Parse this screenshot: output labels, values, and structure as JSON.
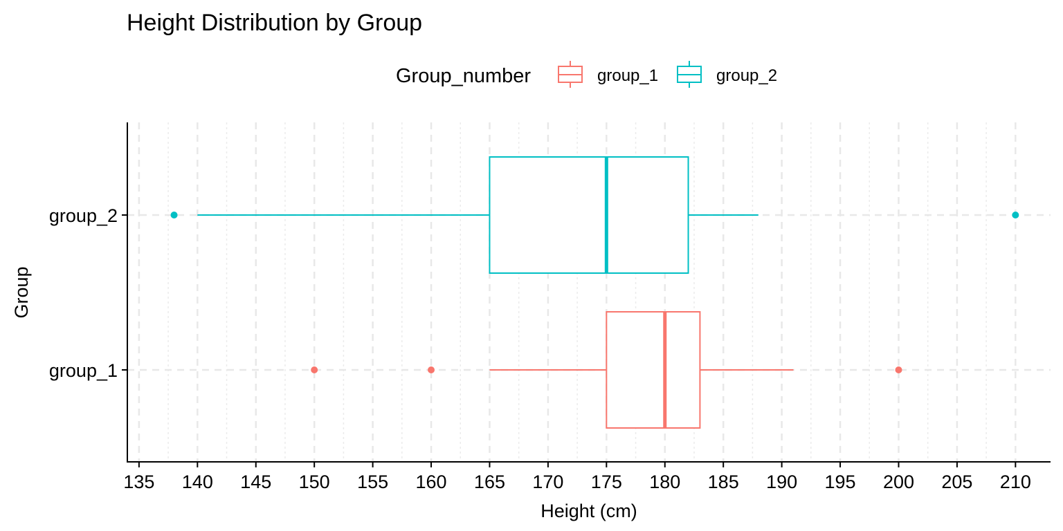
{
  "chart_data": {
    "type": "boxplot",
    "orientation": "horizontal",
    "title": "Height Distribution by Group",
    "xlabel": "Height (cm)",
    "ylabel": "Group",
    "xlim": [
      134,
      213
    ],
    "x_ticks": [
      135,
      140,
      145,
      150,
      155,
      160,
      165,
      170,
      175,
      180,
      185,
      190,
      195,
      200,
      205,
      210
    ],
    "categories": [
      "group_1",
      "group_2"
    ],
    "grid": true,
    "legend": {
      "title": "Group_number",
      "position": "top",
      "entries": [
        "group_1",
        "group_2"
      ]
    },
    "series": [
      {
        "name": "group_1",
        "color": "#F8766D",
        "whisker_low": 165,
        "q1": 175,
        "median": 180,
        "q3": 183,
        "whisker_high": 191,
        "outliers": [
          150,
          160,
          200
        ]
      },
      {
        "name": "group_2",
        "color": "#00BFC4",
        "whisker_low": 140,
        "q1": 165,
        "median": 175,
        "q3": 182,
        "whisker_high": 188,
        "outliers": [
          138,
          210
        ]
      }
    ]
  }
}
